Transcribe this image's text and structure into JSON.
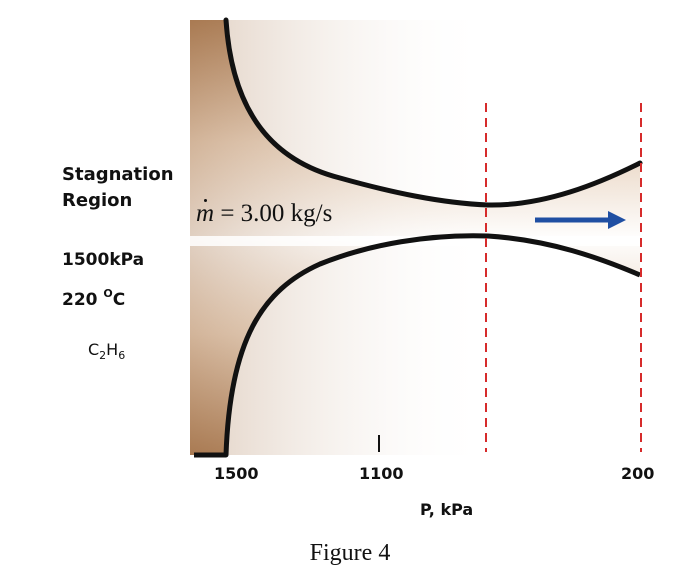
{
  "region": {
    "title_line1": "Stagnation",
    "title_line2": "Region",
    "pressure": "1500kPa",
    "temperature_value": "220 ",
    "temperature_degree": "O",
    "temperature_unit": "C",
    "gas_c": "C",
    "gas_sub1": "2",
    "gas_h": "H",
    "gas_sub2": "6"
  },
  "flow": {
    "symbol": "m",
    "equation": "= 3.00 kg/s"
  },
  "axis": {
    "title": "P, kPa",
    "tick_left": "1500",
    "tick_mid": "1100",
    "tick_right": "200"
  },
  "caption": "Figure 4",
  "colors": {
    "fill_dark": "#a97a52",
    "fill_light": "#ffffff",
    "wall": "#111111",
    "dashed_line": "#d62b2b",
    "arrow": "#1f4fa3"
  }
}
